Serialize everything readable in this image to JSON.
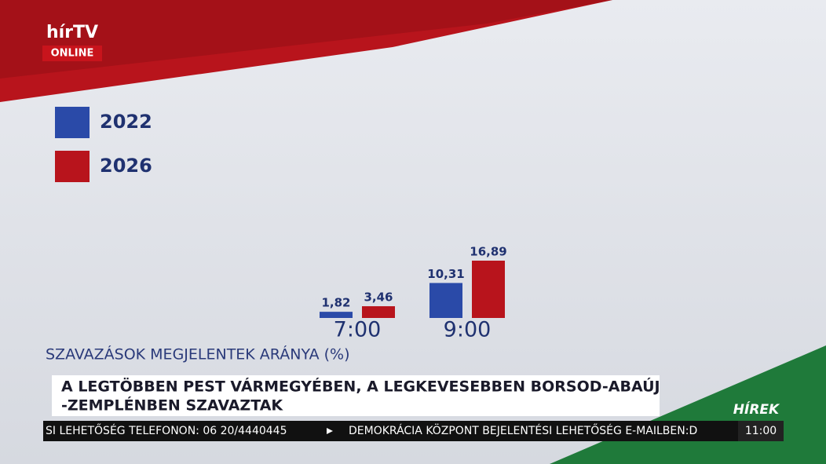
{
  "logo": {
    "brand": "hírTV",
    "sub": "ONLINE"
  },
  "chart_data": {
    "type": "bar",
    "title": "SZAVAZÁSOK MEGJELENTEK ARÁNYA (%)",
    "categories": [
      "7:00",
      "9:00"
    ],
    "series": [
      {
        "name": "2022",
        "color": "#2a4aa8",
        "values": [
          1.82,
          10.31
        ],
        "value_labels": [
          "1,82",
          "10,31"
        ]
      },
      {
        "name": "2026",
        "color": "#b8141c",
        "values": [
          3.46,
          16.89
        ],
        "value_labels": [
          "3,46",
          "16,89"
        ]
      }
    ]
  },
  "headline": {
    "line1": "A LEGTÖBBEN PEST VÁRMEGYÉBEN, A LEGKEVESEBBEN BORSOD-ABAÚJ",
    "line2": "-ZEMPLÉNBEN SZAVAZTAK"
  },
  "ticker": {
    "label": "HÍREK",
    "text1": "SI LEHETŐSÉG TELEFONON: 06 20/4440445",
    "text2": "DEMOKRÁCIA KÖZPONT BEJELENTÉSI LEHETŐSÉG E-MAILBEN:D",
    "time": "11:00"
  }
}
